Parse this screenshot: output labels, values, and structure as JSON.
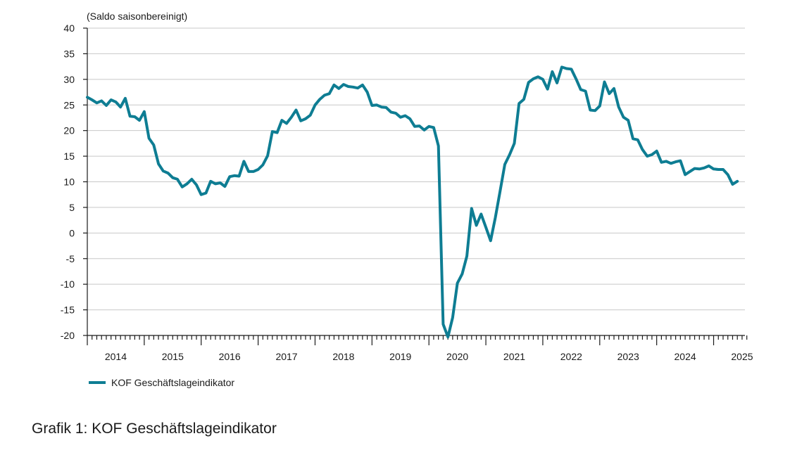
{
  "chart_data": {
    "type": "line",
    "title": "",
    "ylabel": "(Saldo saisonbereinigt)",
    "xlabel": "",
    "ylim": [
      -20,
      40
    ],
    "yticks": [
      40,
      35,
      30,
      25,
      20,
      15,
      10,
      5,
      0,
      -5,
      -10,
      -15,
      -20
    ],
    "ytick_labels": [
      "40",
      "35",
      "30",
      "25",
      "20",
      "15",
      "10",
      "5",
      "0",
      "-5",
      "-10",
      "-15",
      "-20"
    ],
    "xlim": [
      2014.0,
      2025.55
    ],
    "xtick_labels": [
      "2014",
      "2015",
      "2016",
      "2017",
      "2018",
      "2019",
      "2020",
      "2021",
      "2022",
      "2023",
      "2024",
      "2025"
    ],
    "grid": true,
    "legend": "bottom-left",
    "series": [
      {
        "name": "KOF Geschäftslageindikator",
        "color": "#0e7d93",
        "start": "2014-01",
        "frequency": "monthly",
        "values": [
          26.5,
          26.0,
          25.4,
          25.8,
          24.9,
          26.0,
          25.6,
          24.6,
          26.3,
          22.8,
          22.7,
          22.0,
          23.7,
          18.5,
          17.2,
          13.5,
          12.1,
          11.7,
          10.8,
          10.5,
          9.0,
          9.6,
          10.5,
          9.4,
          7.5,
          7.8,
          10.1,
          9.6,
          9.8,
          9.1,
          11.0,
          11.2,
          11.1,
          14.0,
          12.0,
          12.0,
          12.4,
          13.3,
          15.1,
          19.8,
          19.6,
          22.0,
          21.4,
          22.6,
          24.0,
          21.9,
          22.3,
          23.0,
          25.0,
          26.1,
          26.9,
          27.2,
          28.9,
          28.2,
          29.0,
          28.6,
          28.5,
          28.3,
          28.9,
          27.5,
          24.9,
          25.0,
          24.6,
          24.5,
          23.6,
          23.4,
          22.6,
          22.9,
          22.3,
          20.8,
          20.9,
          20.1,
          20.8,
          20.6,
          17.0,
          -17.8,
          -20.3,
          -16.5,
          -9.8,
          -8.0,
          -4.5,
          4.8,
          1.5,
          3.7,
          1.1,
          -1.5,
          3.0,
          8.2,
          13.4,
          15.3,
          17.5,
          25.3,
          26.1,
          29.4,
          30.1,
          30.5,
          30.0,
          28.1,
          31.5,
          29.3,
          32.4,
          32.1,
          32.0,
          30.1,
          28.0,
          27.7,
          24.0,
          23.9,
          24.8,
          29.5,
          27.2,
          28.2,
          24.6,
          22.6,
          22.0,
          18.4,
          18.2,
          16.3,
          15.0,
          15.3,
          16.0,
          13.8,
          14.0,
          13.6,
          13.9,
          14.1,
          11.4,
          12.0,
          12.6,
          12.5,
          12.7,
          13.1,
          12.5,
          12.4,
          12.4,
          11.4,
          9.5,
          10.1
        ]
      }
    ]
  },
  "caption": "Grafik 1: KOF Geschäftslageindikator"
}
